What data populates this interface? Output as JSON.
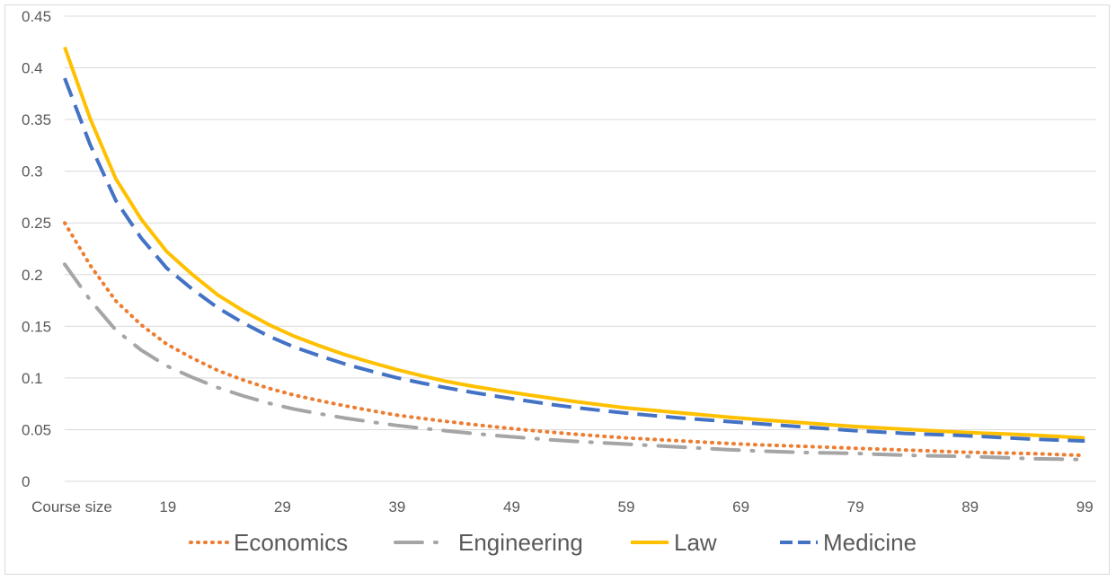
{
  "chart_data": {
    "type": "line",
    "title": "",
    "xlabel": "",
    "ylabel": "",
    "x_tick_labels": [
      "Course size",
      "19",
      "29",
      "39",
      "49",
      "59",
      "69",
      "79",
      "89",
      "99"
    ],
    "x_tick_values": [
      10,
      19,
      29,
      39,
      49,
      59,
      69,
      79,
      89,
      99
    ],
    "x_range": [
      10,
      100
    ],
    "ylim": [
      0,
      0.45
    ],
    "y_ticks": [
      0,
      0.05,
      0.1,
      0.15,
      0.2,
      0.25,
      0.3,
      0.35,
      0.4,
      0.45
    ],
    "y_tick_labels": [
      "0",
      "0.05",
      "0.1",
      "0.15",
      "0.2",
      "0.25",
      "0.3",
      "0.35",
      "0.4",
      "0.45"
    ],
    "grid": true,
    "legend_position": "bottom",
    "x": [
      10,
      15,
      19,
      24,
      29,
      34,
      39,
      44,
      49,
      54,
      59,
      64,
      69,
      74,
      79,
      84,
      89,
      94,
      99
    ],
    "series": [
      {
        "name": "Economics",
        "color": "#ED7D31",
        "style": "dotted",
        "values": [
          0.25,
          0.167,
          0.132,
          0.104,
          0.086,
          0.074,
          0.064,
          0.057,
          0.051,
          0.046,
          0.042,
          0.039,
          0.036,
          0.034,
          0.032,
          0.03,
          0.028,
          0.027,
          0.025
        ]
      },
      {
        "name": "Engineering",
        "color": "#A5A5A5",
        "style": "dash-dot",
        "values": [
          0.21,
          0.14,
          0.111,
          0.088,
          0.072,
          0.062,
          0.054,
          0.048,
          0.043,
          0.039,
          0.036,
          0.033,
          0.03,
          0.028,
          0.027,
          0.025,
          0.024,
          0.022,
          0.021
        ]
      },
      {
        "name": "Law",
        "color": "#FFC000",
        "style": "solid",
        "values": [
          0.42,
          0.28,
          0.221,
          0.175,
          0.145,
          0.124,
          0.108,
          0.095,
          0.086,
          0.078,
          0.071,
          0.066,
          0.061,
          0.057,
          0.053,
          0.05,
          0.047,
          0.045,
          0.042
        ]
      },
      {
        "name": "Medicine",
        "color": "#4472C4",
        "style": "dashed",
        "values": [
          0.39,
          0.26,
          0.205,
          0.163,
          0.134,
          0.115,
          0.1,
          0.089,
          0.08,
          0.072,
          0.066,
          0.061,
          0.057,
          0.053,
          0.049,
          0.046,
          0.044,
          0.041,
          0.039
        ]
      }
    ]
  }
}
